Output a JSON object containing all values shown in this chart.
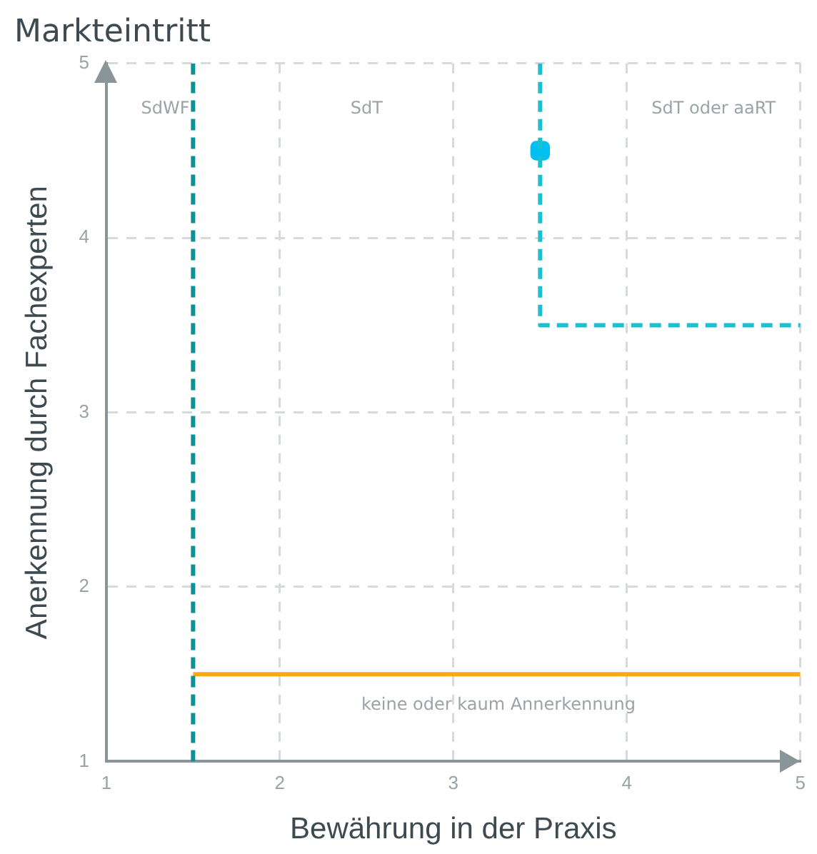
{
  "chart_data": {
    "type": "line",
    "title": "Markteintritt",
    "xlabel": "Bewährung in der Praxis",
    "ylabel": "Anerkennung durch Fachexperten",
    "xlim": [
      1,
      5
    ],
    "xticks": [
      1,
      2,
      3,
      4,
      5
    ],
    "ylim": [
      1,
      5
    ],
    "yticks": [
      1,
      2,
      3,
      4,
      5
    ],
    "grid": true,
    "legend": false,
    "series": [
      {
        "color": "#0e9196",
        "line_style": "dashed",
        "marker": "none",
        "x": [
          1.5,
          1.5
        ],
        "values": [
          1,
          5
        ]
      },
      {
        "color": "#1ec0cf",
        "line_style": "dashed",
        "marker": "none",
        "x": [
          3.5,
          3.5,
          5
        ],
        "values": [
          5,
          3.5,
          3.5
        ]
      },
      {
        "color": "#f7a81b",
        "line_style": "solid",
        "marker": "none",
        "x": [
          1.5,
          5
        ],
        "values": [
          1.5,
          1.5
        ]
      },
      {
        "type": "scatter",
        "color": "#00bff3",
        "marker": "square",
        "x": [
          3.5
        ],
        "values": [
          4.5
        ]
      }
    ],
    "annotations": [
      "SdWF",
      "SdT",
      "SdT oder aaRT",
      "keine oder kaum Annerkennung"
    ]
  }
}
